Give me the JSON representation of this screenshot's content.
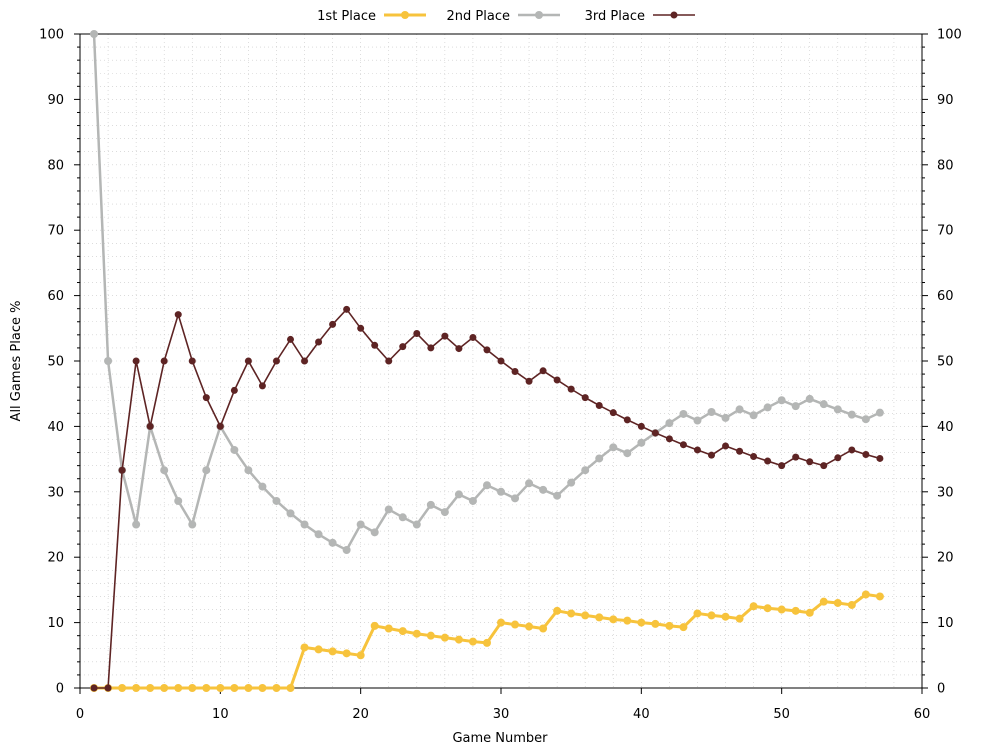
{
  "chart_data": {
    "type": "line",
    "title": "",
    "xlabel": "Game Number",
    "ylabel": "All Games Place %",
    "xlim": [
      0,
      60
    ],
    "ylim": [
      0,
      100
    ],
    "x_ticks": [
      "0",
      "10",
      "20",
      "30",
      "40",
      "50",
      "60"
    ],
    "y_ticks": [
      "0",
      "10",
      "20",
      "30",
      "40",
      "50",
      "60",
      "70",
      "80",
      "90",
      "100"
    ],
    "grid": true,
    "legend_position": "top",
    "x": [
      1,
      2,
      3,
      4,
      5,
      6,
      7,
      8,
      9,
      10,
      11,
      12,
      13,
      14,
      15,
      16,
      17,
      18,
      19,
      20,
      21,
      22,
      23,
      24,
      25,
      26,
      27,
      28,
      29,
      30,
      31,
      32,
      33,
      34,
      35,
      36,
      37,
      38,
      39,
      40,
      41,
      42,
      43,
      44,
      45,
      46,
      47,
      48,
      49,
      50,
      51,
      52,
      53,
      54,
      55,
      56,
      57
    ],
    "series": [
      {
        "name": "1st Place",
        "color": "#f7c33c",
        "values": [
          0,
          0,
          0,
          0,
          0,
          0,
          0,
          0,
          0,
          0,
          0,
          0,
          0,
          0,
          0,
          6.2,
          5.9,
          5.6,
          5.3,
          5.0,
          9.5,
          9.1,
          8.7,
          8.3,
          8.0,
          7.7,
          7.4,
          7.1,
          6.9,
          10.0,
          9.7,
          9.4,
          9.1,
          11.8,
          11.4,
          11.1,
          10.8,
          10.5,
          10.3,
          10.0,
          9.8,
          9.5,
          9.3,
          11.4,
          11.1,
          10.9,
          10.6,
          12.5,
          12.2,
          12.0,
          11.8,
          11.5,
          13.2,
          13.0,
          12.7,
          14.3,
          14.0
        ]
      },
      {
        "name": "2nd Place",
        "color": "#b4b6b5",
        "values": [
          100,
          50,
          33.3,
          25,
          40,
          33.3,
          28.6,
          25,
          33.3,
          40,
          36.4,
          33.3,
          30.8,
          28.6,
          26.7,
          25,
          23.5,
          22.2,
          21.1,
          25,
          23.8,
          27.3,
          26.1,
          25,
          28,
          26.9,
          29.6,
          28.6,
          31,
          30,
          29,
          31.3,
          30.3,
          29.4,
          31.4,
          33.3,
          35.1,
          36.8,
          35.9,
          37.5,
          39,
          40.5,
          41.9,
          40.9,
          42.2,
          41.3,
          42.6,
          41.7,
          42.9,
          44,
          43.1,
          44.2,
          43.4,
          42.6,
          41.8,
          41.1,
          42.1
        ]
      },
      {
        "name": "3rd Place",
        "color": "#5e2424",
        "values": [
          0,
          0,
          33.3,
          50,
          40,
          50,
          57.1,
          50,
          44.4,
          40,
          45.5,
          50,
          46.2,
          50,
          53.3,
          50,
          52.9,
          55.6,
          57.9,
          55,
          52.4,
          50,
          52.2,
          54.2,
          52,
          53.8,
          51.9,
          53.6,
          51.7,
          50,
          48.4,
          46.9,
          48.5,
          47.1,
          45.7,
          44.4,
          43.2,
          42.1,
          41,
          40,
          39,
          38.1,
          37.2,
          36.4,
          35.6,
          37,
          36.2,
          35.4,
          34.7,
          34,
          35.3,
          34.6,
          34,
          35.2,
          36.4,
          35.7,
          35.1
        ]
      }
    ]
  }
}
